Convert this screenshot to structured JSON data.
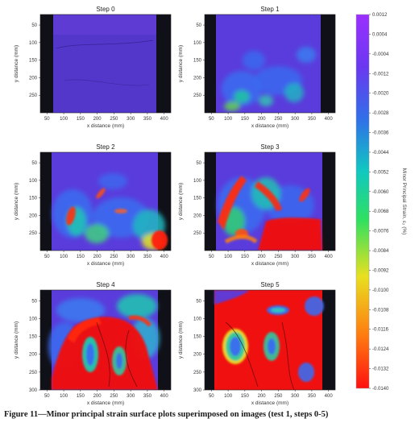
{
  "chart_data": {
    "type": "heatmap",
    "panels": [
      {
        "title": "Step 0",
        "xlabel": "x distance (mm)",
        "ylabel": "y distance (mm)",
        "xticks": [
          50,
          100,
          150,
          200,
          250,
          300,
          350,
          400
        ],
        "yticks": [
          50,
          100,
          150,
          200,
          250
        ]
      },
      {
        "title": "Step 1",
        "xlabel": "x distance (mm)",
        "ylabel": "y distance (mm)",
        "xticks": [
          50,
          100,
          150,
          200,
          250,
          300,
          350,
          400
        ],
        "yticks": [
          50,
          100,
          150,
          200,
          250
        ]
      },
      {
        "title": "Step 2",
        "xlabel": "x distance (mm)",
        "ylabel": "y distance (mm)",
        "xticks": [
          50,
          100,
          150,
          200,
          250,
          300,
          350,
          400
        ],
        "yticks": [
          50,
          100,
          150,
          200,
          250
        ]
      },
      {
        "title": "Step 3",
        "xlabel": "x distance (mm)",
        "ylabel": "y distance (mm)",
        "xticks": [
          50,
          100,
          150,
          200,
          250,
          300,
          350,
          400
        ],
        "yticks": [
          50,
          100,
          150,
          200,
          250
        ]
      },
      {
        "title": "Step 4",
        "xlabel": "x distance (mm)",
        "ylabel": "y distance (mm)",
        "xticks": [
          50,
          100,
          150,
          200,
          250,
          300,
          350,
          400
        ],
        "yticks": [
          50,
          100,
          150,
          200,
          250,
          300
        ]
      },
      {
        "title": "Step 5",
        "xlabel": "x distance (mm)",
        "ylabel": "y distance (mm)",
        "xticks": [
          50,
          100,
          150,
          200,
          250,
          300,
          350,
          400
        ],
        "yticks": [
          50,
          100,
          150,
          200,
          250,
          300
        ]
      }
    ],
    "xlim": [
      30,
      420
    ],
    "ylim": [
      300,
      20
    ],
    "colorbar": {
      "label": "Minor Principal Strain, ε₂ (%)",
      "ticks": [
        "0.0012",
        "0.0004",
        "-0.0004",
        "-0.0012",
        "-0.0020",
        "-0.0028",
        "-0.0036",
        "-0.0044",
        "-0.0052",
        "-0.0060",
        "-0.0068",
        "-0.0076",
        "-0.0084",
        "-0.0092",
        "-0.0100",
        "-0.0108",
        "-0.0116",
        "-0.0124",
        "-0.0132",
        "-0.0140"
      ],
      "min": -0.014,
      "max": 0.0012,
      "colors": [
        "#ff1010",
        "#ff7a10",
        "#e8e020",
        "#30e060",
        "#10c8c0",
        "#3070e8",
        "#6a38f0",
        "#9b30ff"
      ]
    }
  },
  "caption": "Figure 11—Minor principal strain surface plots superimposed on images (test 1, steps 0-5)"
}
